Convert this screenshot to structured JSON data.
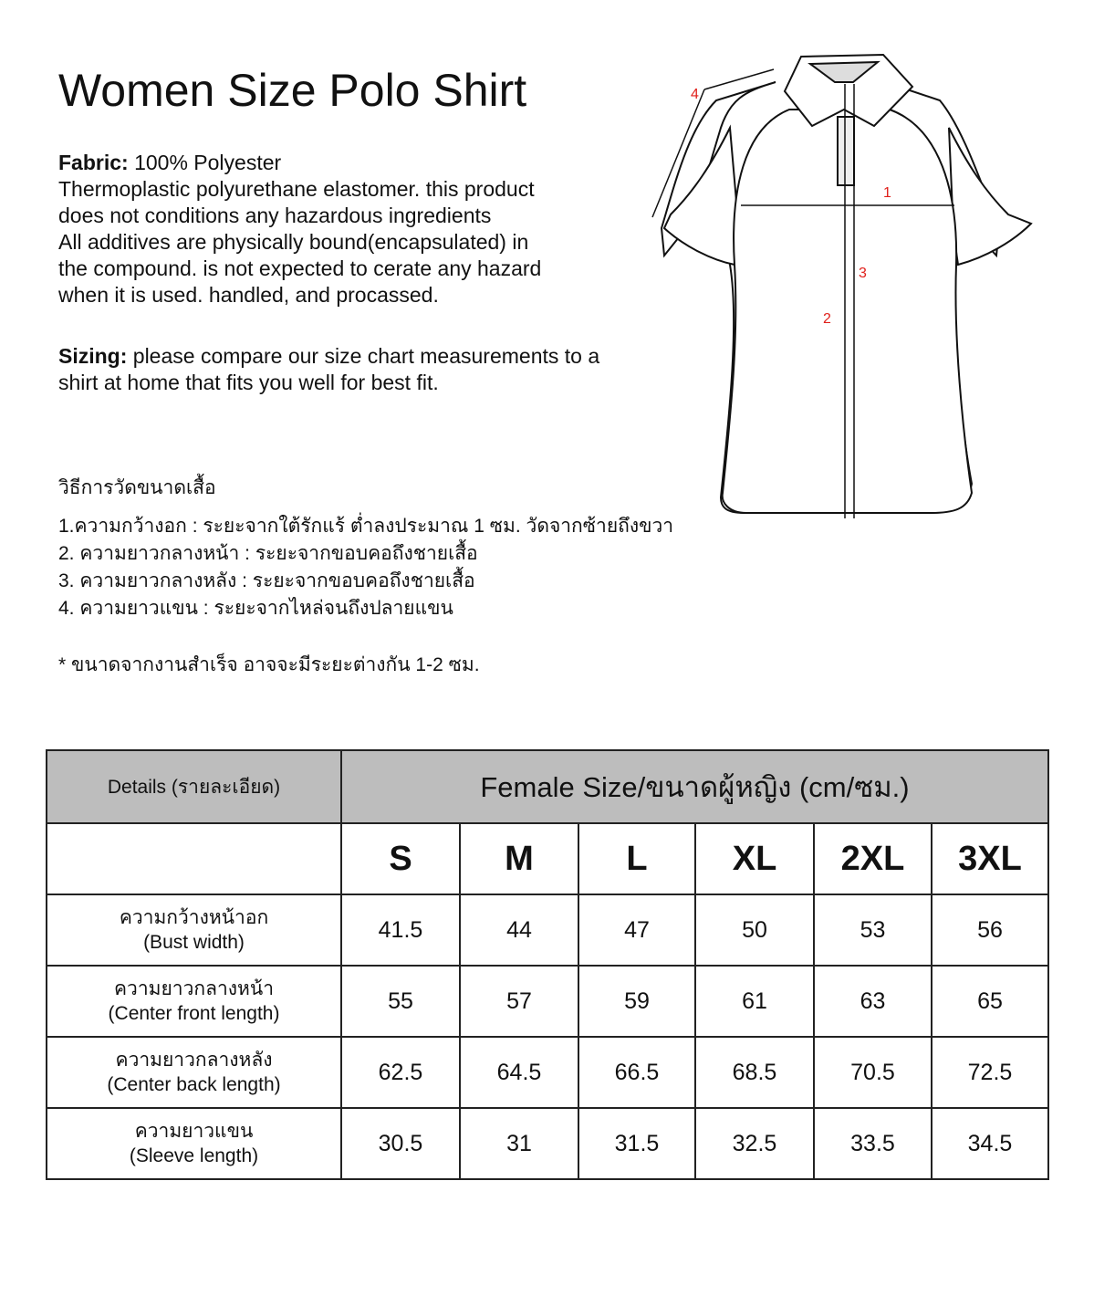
{
  "title": "Women Size Polo Shirt",
  "fabric": {
    "label": "Fabric:",
    "value": " 100% Polyester",
    "lines": [
      "Thermoplastic polyurethane elastomer. this product",
      "does not conditions any hazardous ingredients",
      "All additives are physically bound(encapsulated) in",
      "the compound. is not expected to cerate any hazard",
      "when it is used. handled, and procassed."
    ]
  },
  "sizing": {
    "label": "Sizing:",
    "text": " please compare our size chart measurements to a shirt at home that fits you well for best fit."
  },
  "howto": {
    "heading": "วิธีการวัดขนาดเสื้อ",
    "items": [
      "1.ความกว้างอก : ระยะจากใต้รักแร้ ต่ำลงประมาณ 1 ซม. วัดจากซ้ายถึงขวา",
      "2. ความยาวกลางหน้า : ระยะจากขอบคอถึงชายเสื้อ",
      "3. ความยาวกลางหลัง  : ระยะจากขอบคอถึงชายเสื้อ",
      "4. ความยาวแขน : ระยะจากไหล่จนถึงปลายแขน"
    ],
    "note": "* ขนาดจากงานสำเร็จ อาจจะมีระยะต่างกัน 1-2 ซม."
  },
  "diagram": {
    "labels": [
      "1",
      "2",
      "3",
      "4"
    ],
    "label_color": "#e0201b"
  },
  "table": {
    "details_header": "Details (รายละเอียด)",
    "size_header": "Female Size/ขนาดผู้หญิง (cm/ซม.)",
    "header_bg": "#bdbdbd",
    "sizes": [
      "S",
      "M",
      "L",
      "XL",
      "2XL",
      "3XL"
    ],
    "rows": [
      {
        "th": "ความกว้างหน้าอก",
        "en": "(Bust width)",
        "values": [
          "41.5",
          "44",
          "47",
          "50",
          "53",
          "56"
        ]
      },
      {
        "th": "ความยาวกลางหน้า",
        "en": "(Center front length)",
        "values": [
          "55",
          "57",
          "59",
          "61",
          "63",
          "65"
        ]
      },
      {
        "th": "ความยาวกลางหลัง",
        "en": "(Center back length)",
        "values": [
          "62.5",
          "64.5",
          "66.5",
          "68.5",
          "70.5",
          "72.5"
        ]
      },
      {
        "th": "ความยาวแขน",
        "en": "(Sleeve length)",
        "values": [
          "30.5",
          "31",
          "31.5",
          "32.5",
          "33.5",
          "34.5"
        ]
      }
    ]
  }
}
